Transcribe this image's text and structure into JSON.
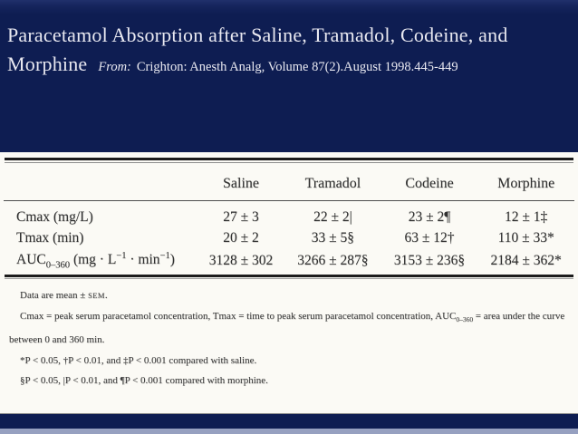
{
  "header": {
    "title": "Paracetamol Absorption after Saline, Tramadol, Codeine, and Morphine",
    "from_label": "From:",
    "citation": "Crighton: Anesth Analg, Volume 87(2).August 1998.445-449"
  },
  "table": {
    "columns": [
      "",
      "Saline",
      "Tramadol",
      "Codeine",
      "Morphine"
    ],
    "rows": [
      {
        "label": "Cmax (mg/L)",
        "values": [
          "27 ± 3",
          "22 ± 2|",
          "23 ± 2¶",
          "12 ± 1‡"
        ]
      },
      {
        "label": "Tmax (min)",
        "values": [
          "20 ± 2",
          "33 ± 5§",
          "63 ± 12†",
          "110 ± 33*"
        ]
      },
      {
        "label_pre": "AUC",
        "label_sub": "0–360",
        "label_mid1": " (mg · L",
        "label_sup1": "−1",
        "label_mid2": " · min",
        "label_sup2": "−1",
        "label_end": ")",
        "values": [
          "3128 ± 302",
          "3266 ± 287§",
          "3153 ± 236§",
          "2184 ± 362*"
        ]
      }
    ]
  },
  "footnotes": {
    "mean_pre": "Data are mean ± ",
    "mean_sc": "SEM",
    "mean_post": ".",
    "def_pre": "Cmax = peak serum paracetamol concentration, Tmax = time to peak serum paracetamol concentration, AUC",
    "def_sub": "0–360",
    "def_post": " = area under the curve between 0 and 360 min.",
    "saline": "*P < 0.05, †P < 0.01, and ‡P < 0.001 compared with saline.",
    "morphine": "§P < 0.05, |P < 0.01, and ¶P < 0.001 compared with morphine."
  },
  "colors": {
    "slide_background": "#0e1d52",
    "panel_background": "#fbfaf5",
    "accent_strip": "#96a0c0",
    "title_text": "#e9e9f1",
    "table_text": "#303030"
  }
}
